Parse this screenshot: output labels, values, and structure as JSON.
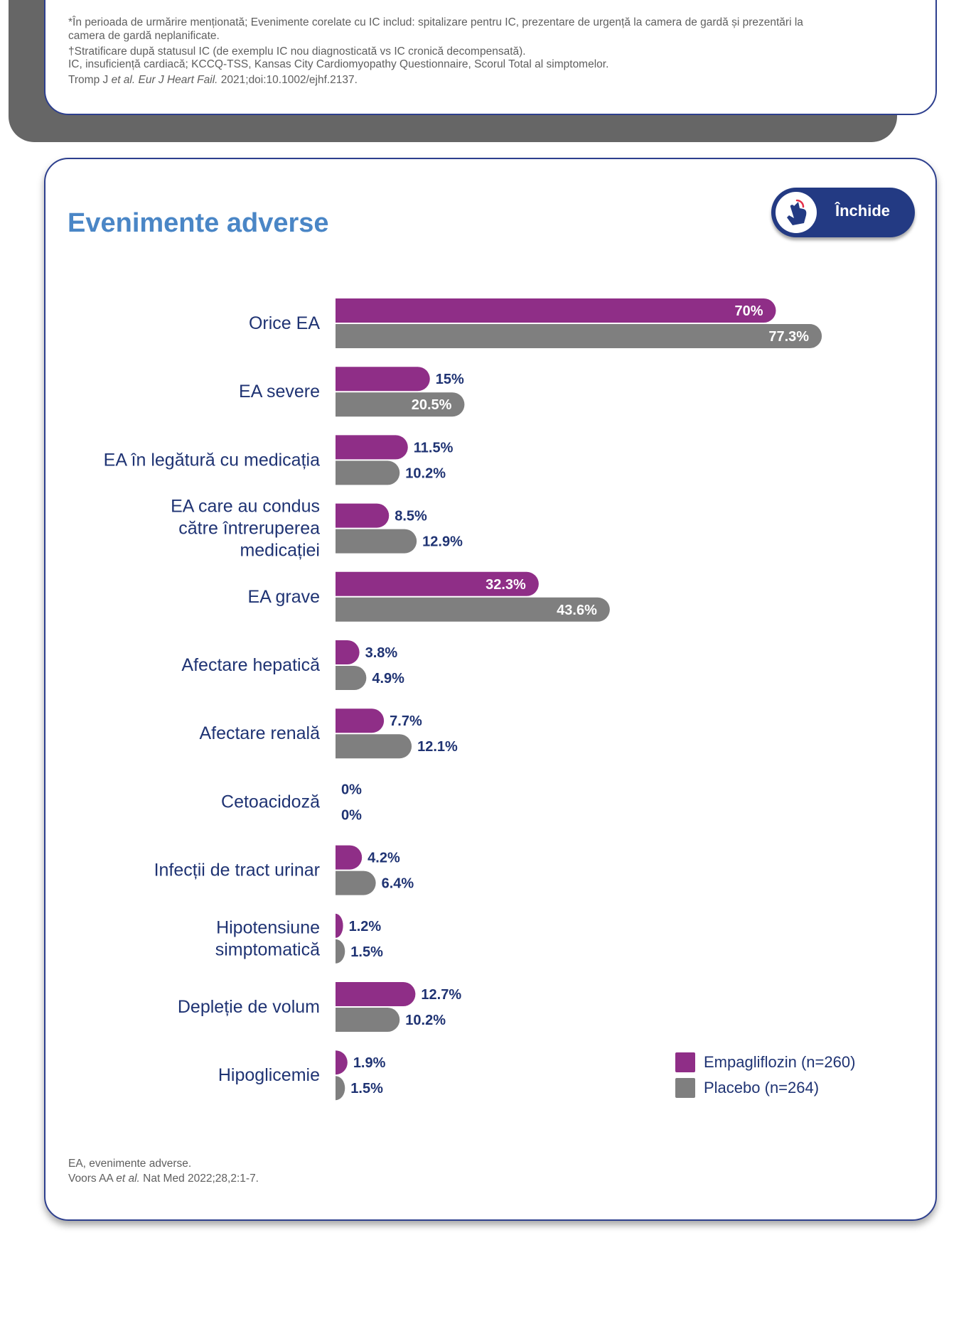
{
  "top_notes": {
    "line1": "*În perioada de urmărire menționată; Evenimente corelate cu IC includ: spitalizare pentru IC, prezentare de urgență la camera de gardă și prezentări la camera de gardă neplanificate.",
    "line2": "†Stratificare după statusul IC (de exemplu IC nou diagnosticată vs IC cronică decompensată).",
    "line3": "IC, insuficiență cardiacă; KCCQ-TSS, Kansas City Cardiomyopathy Questionnaire, Scorul Total al simptomelor.",
    "citation_prefix": "Tromp J ",
    "citation_etal": "et al. Eur J Heart Fail.",
    "citation_suffix": " 2021;doi:10.1002/ejhf.2137."
  },
  "title": "Evenimente adverse",
  "close_button": {
    "label": "Închide",
    "icon": "hand-tap-icon"
  },
  "colors": {
    "empagliflozin": "#8f2e87",
    "placebo": "#7f7f7f",
    "label_dark": "#1f3373",
    "title": "#4a86c6"
  },
  "chart_data": {
    "type": "bar",
    "orientation": "horizontal",
    "categories": [
      "Orice EA",
      "EA severe",
      "EA în legătură cu medicația",
      "EA care au condus\ncătre  întreruperea\nmedicației",
      "EA grave",
      "Afectare hepatică",
      "Afectare renală",
      "Cetoacidoză",
      "Infecții de tract urinar",
      "Hipotensiune\nsimptomatică",
      "Depleție de volum",
      "Hipoglicemie"
    ],
    "series": [
      {
        "name": "Empagliflozin (n=260)",
        "values": [
          70,
          15,
          11.5,
          8.5,
          32.3,
          3.8,
          7.7,
          0,
          4.2,
          1.2,
          12.7,
          1.9
        ],
        "labels": [
          "70%",
          "15%",
          "11.5%",
          "8.5%",
          "32.3%",
          "3.8%",
          "7.7%",
          "0%",
          "4.2%",
          "1.2%",
          "12.7%",
          "1.9%"
        ]
      },
      {
        "name": "Placebo (n=264)",
        "values": [
          77.3,
          20.5,
          10.2,
          12.9,
          43.6,
          4.9,
          12.1,
          0,
          6.4,
          1.5,
          10.2,
          1.5
        ],
        "labels": [
          "77.3%",
          "20.5%",
          "10.2%",
          "12.9%",
          "43.6%",
          "4.9%",
          "12.1%",
          "0%",
          "6.4%",
          "1.5%",
          "10.2%",
          "1.5%"
        ]
      }
    ],
    "xlim": [
      0,
      80
    ],
    "legend_position": "bottom-right"
  },
  "bottom_notes": {
    "line1": "EA, evenimente adverse.",
    "citation_prefix": "Voors AA ",
    "citation_etal": "et al.",
    "citation_suffix": " Nat Med 2022;28,2:1-7."
  }
}
